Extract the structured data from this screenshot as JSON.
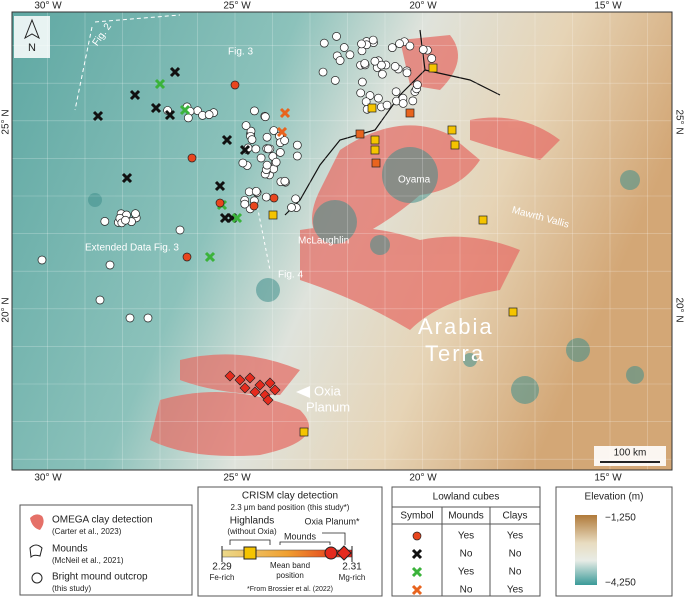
{
  "map": {
    "lon_labels": [
      "30° W",
      "25° W",
      "20° W",
      "15° W"
    ],
    "lat_labels": [
      "25° N",
      "20° N"
    ],
    "north": "N",
    "scale_bar": "100 km",
    "labels": {
      "fig2": "Fig. 2",
      "fig3": "Fig. 3",
      "ext_fig3": "Extended Data Fig. 3",
      "fig4": "Fig. 4",
      "oyama": "Oyama",
      "mclaughlin": "McLaughlin",
      "mawrth": "Mawrth Vallis",
      "arabia": "Arabia",
      "terra": "Terra",
      "oxia": "Oxia",
      "planum": "Planum"
    }
  },
  "legend": {
    "omega": "OMEGA clay detection",
    "omega_ref": "(Carter et al., 2023)",
    "mounds": "Mounds",
    "mounds_ref": "(McNeil et al., 2021)",
    "bright": "Bright mound outcrop",
    "bright_ref": "(this study)"
  },
  "crism": {
    "title": "CRISM clay detection",
    "subtitle": "2.3 μm band position (this study*)",
    "highlands": "Highlands",
    "without_oxia": "(without Oxia)",
    "oxia": "Oxia Planum*",
    "mounds": "Mounds",
    "min": "2.29",
    "min_note": "Fe-rich",
    "mean1": "Mean band",
    "mean2": "position",
    "max": "2.31",
    "max_note": "Mg-rich",
    "footnote": "*From Brossier et al. (2022)"
  },
  "lowland_cubes": {
    "title": "Lowland cubes",
    "headers": [
      "Symbol",
      "Mounds",
      "Clays"
    ],
    "rows": [
      [
        "Yes",
        "Yes"
      ],
      [
        "No",
        "No"
      ],
      [
        "Yes",
        "No"
      ],
      [
        "No",
        "Yes"
      ]
    ]
  },
  "elevation": {
    "title": "Elevation (m)",
    "max": "−1,250",
    "min": "−4,250"
  }
}
